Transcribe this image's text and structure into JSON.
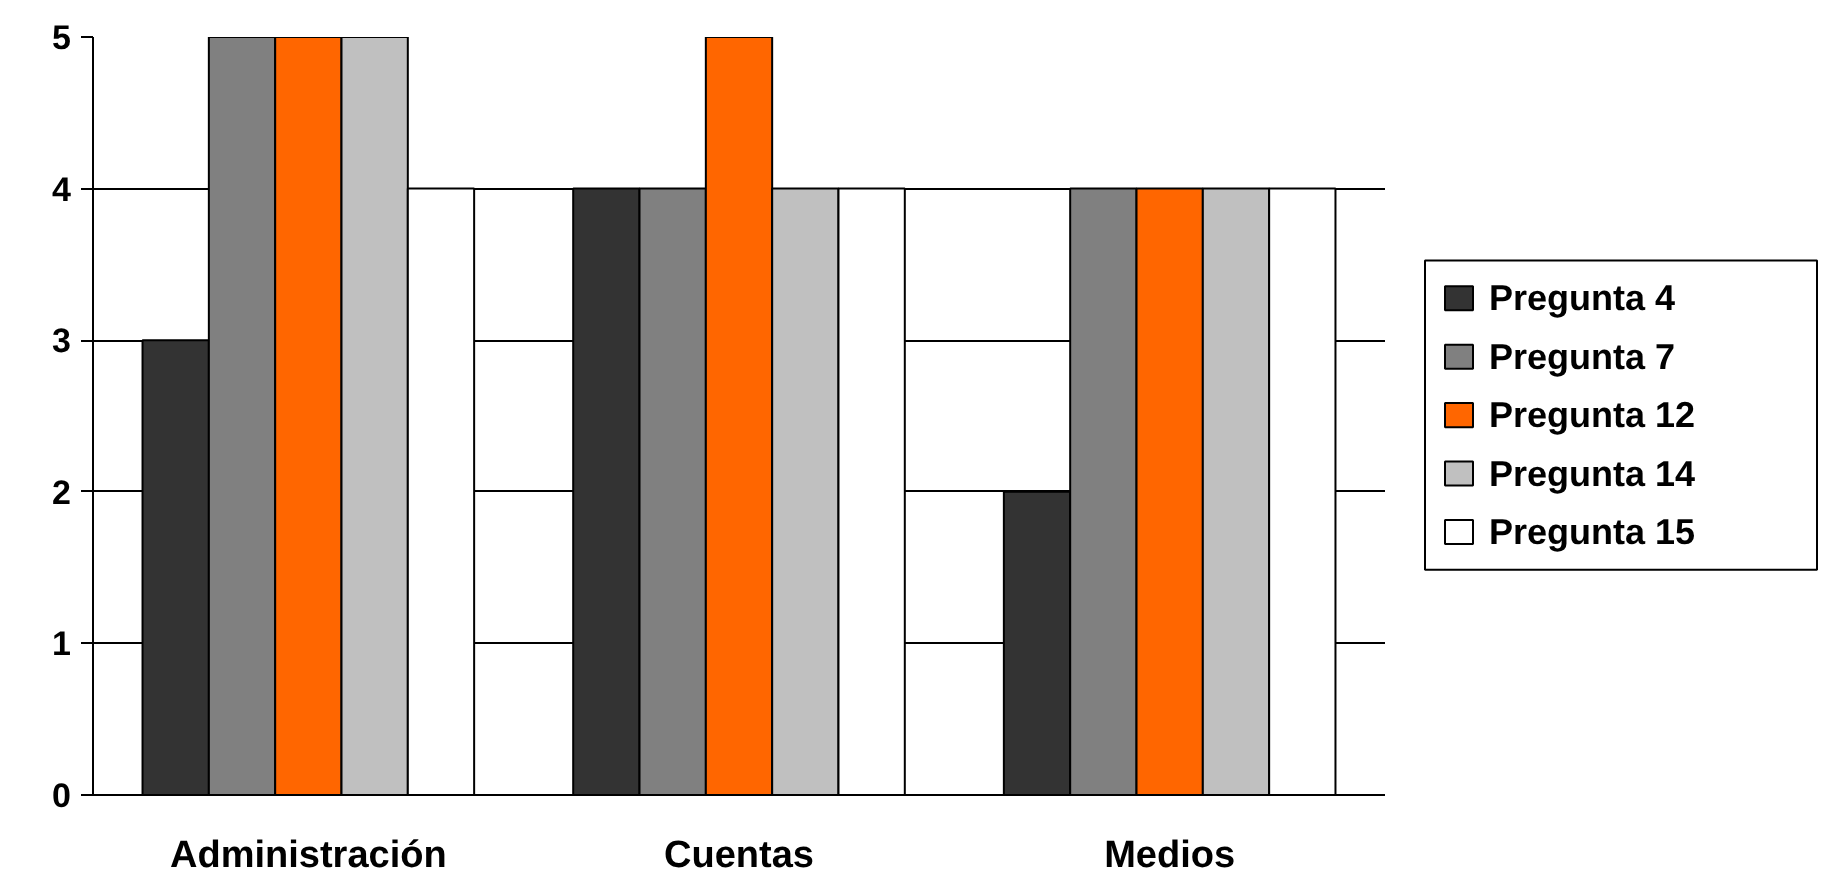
{
  "chart_data": {
    "type": "bar",
    "categories": [
      "Administración",
      "Cuentas",
      "Medios"
    ],
    "series": [
      {
        "name": "Pregunta 4",
        "color": "#333333",
        "values": [
          3,
          4,
          2
        ]
      },
      {
        "name": "Pregunta 7",
        "color": "#808080",
        "values": [
          5,
          4,
          4
        ]
      },
      {
        "name": "Pregunta 12",
        "color": "#ff6600",
        "values": [
          5,
          5,
          4
        ]
      },
      {
        "name": "Pregunta 14",
        "color": "#c0c0c0",
        "values": [
          5,
          4,
          4
        ]
      },
      {
        "name": "Pregunta 15",
        "color": "#ffffff",
        "values": [
          4,
          4,
          4
        ]
      }
    ],
    "ylim": [
      0,
      5
    ],
    "yticks": [
      0,
      1,
      2,
      3,
      4,
      5
    ],
    "grid": "y",
    "legend": "right"
  }
}
